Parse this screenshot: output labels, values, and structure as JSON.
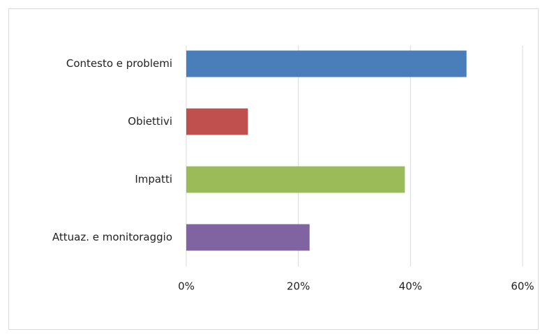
{
  "chart_data": {
    "type": "bar",
    "orientation": "horizontal",
    "categories": [
      "Contesto e problemi",
      "Obiettivi",
      "Impatti",
      "Attuaz. e monitoraggio"
    ],
    "values": [
      50,
      11,
      39,
      22
    ],
    "colors": [
      "#4a7ebb",
      "#c0504d",
      "#9bbb59",
      "#8064a2"
    ],
    "xlim": [
      0,
      60
    ],
    "xticks": [
      {
        "value": 0,
        "label": "0%"
      },
      {
        "value": 20,
        "label": "20%"
      },
      {
        "value": 40,
        "label": "40%"
      },
      {
        "value": 60,
        "label": "60%"
      }
    ],
    "grid": true
  }
}
